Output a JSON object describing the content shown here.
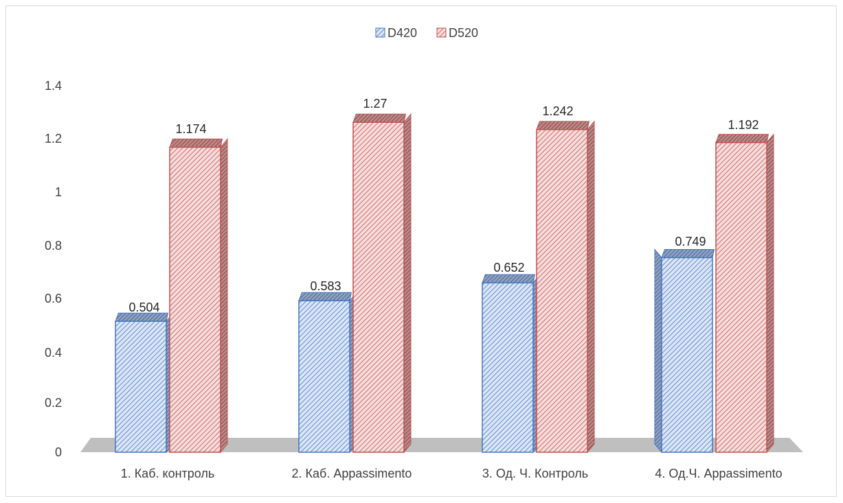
{
  "chart_data": {
    "type": "bar",
    "title": "",
    "xlabel": "",
    "ylabel": "",
    "categories": [
      "1. Каб. контроль",
      "2. Каб. Appassimento",
      "3. Од. Ч. Контроль",
      "4. Од.Ч. Appassimento"
    ],
    "series": [
      {
        "name": "D420",
        "values": [
          0.504,
          0.583,
          0.652,
          0.749
        ],
        "labels": [
          "0.504",
          "0.583",
          "0.652",
          "0.749"
        ]
      },
      {
        "name": "D520",
        "values": [
          1.174,
          1.27,
          1.242,
          1.192
        ],
        "labels": [
          "1.174",
          "1.27",
          "1.242",
          "1.192"
        ]
      }
    ],
    "ylim": [
      0,
      1.4
    ],
    "yticks": [
      "0",
      "0.2",
      "0.4",
      "0.6",
      "0.8",
      "1",
      "1.2",
      "1.4"
    ],
    "legend": "top",
    "grid": false,
    "style": "3d-clustered-hatched",
    "colors": {
      "D420": "#4472c4",
      "D520": "#c0504d",
      "floor": "#bfbfbf"
    }
  }
}
